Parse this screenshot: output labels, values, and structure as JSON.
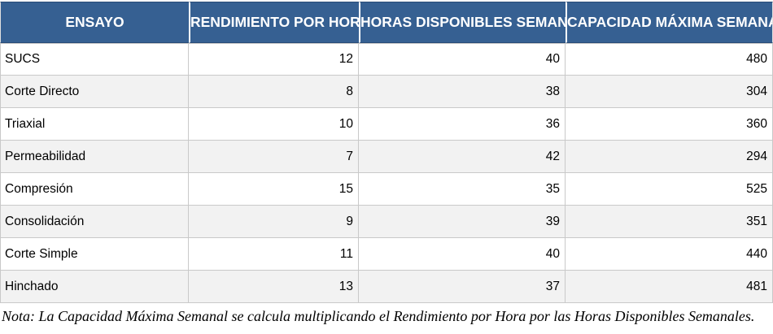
{
  "chart_data": {
    "type": "table",
    "columns": [
      {
        "label": "ENSAYO",
        "align": "left"
      },
      {
        "label": "RENDIMIENTO POR HORA",
        "align": "right"
      },
      {
        "label": "HORAS DISPONIBLES SEMANALES",
        "align": "right"
      },
      {
        "label": "CAPACIDAD MÁXIMA SEMANAL",
        "align": "right"
      }
    ],
    "rows": [
      [
        "SUCS",
        12,
        40,
        480
      ],
      [
        "Corte Directo",
        8,
        38,
        304
      ],
      [
        "Triaxial",
        10,
        36,
        360
      ],
      [
        "Permeabilidad",
        7,
        42,
        294
      ],
      [
        "Compresión",
        15,
        35,
        525
      ],
      [
        "Consolidación",
        9,
        39,
        351
      ],
      [
        "Corte Simple",
        11,
        40,
        440
      ],
      [
        "Hinchado",
        13,
        37,
        481
      ]
    ],
    "note": "Nota: La Capacidad Máxima Semanal se calcula multiplicando el Rendimiento por Hora por las Horas Disponibles Semanales."
  },
  "colors": {
    "header_bg": "#366092",
    "header_text": "#ffffff",
    "header_edge": "#2a4d78",
    "row_bg": "#ffffff",
    "row_alt_bg": "#f2f2f2",
    "grid_line": "#c9c9c9",
    "body_text": "#000000"
  }
}
